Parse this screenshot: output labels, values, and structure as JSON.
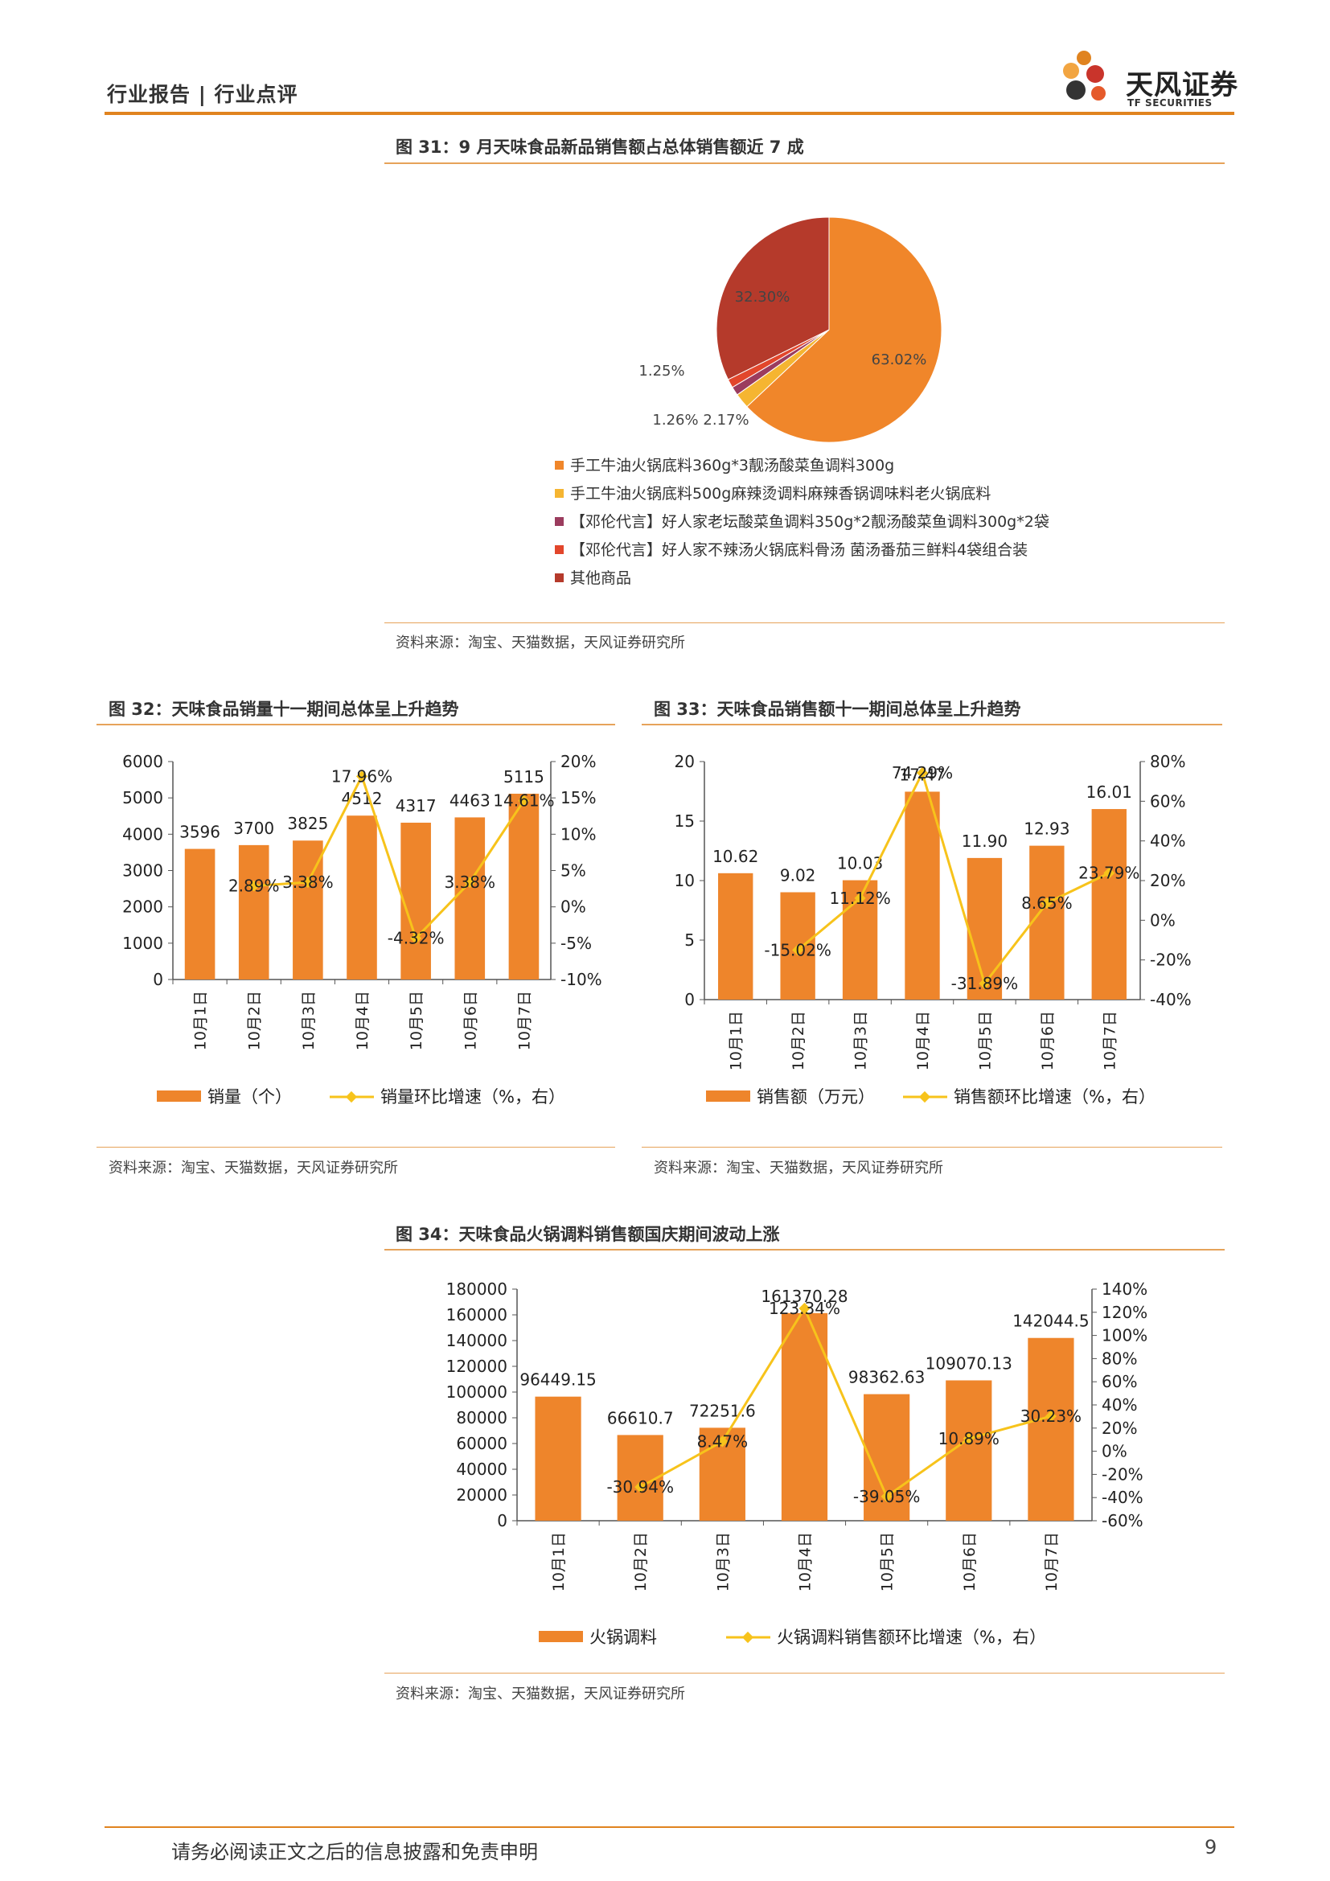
{
  "header": {
    "title": "行业报告 | 行业点评",
    "logo_cn": "天风证券",
    "logo_en": "TF SECURITIES"
  },
  "figures": {
    "fig31": {
      "title": "图 31：9 月天味食品新品销售额占总体销售额近 7 成",
      "source": "资料来源：淘宝、天猫数据，天风证券研究所"
    },
    "fig32": {
      "title": "图 32：天味食品销量十一期间总体呈上升趋势",
      "source": "资料来源：淘宝、天猫数据，天风证券研究所"
    },
    "fig33": {
      "title": "图 33：天味食品销售额十一期间总体呈上升趋势",
      "source": "资料来源：淘宝、天猫数据，天风证券研究所"
    },
    "fig34": {
      "title": "图 34：天味食品火锅调料销售额国庆期间波动上涨",
      "source": "资料来源：淘宝、天猫数据，天风证券研究所"
    }
  },
  "chart_data": [
    {
      "id": "fig31",
      "type": "pie",
      "labels": [
        "手工牛油火锅底料360g*3靓汤酸菜鱼调料300g",
        "手工牛油火锅底料500g麻辣烫调料麻辣香锅调味料老火锅底料",
        "【邓伦代言】好人家老坛酸菜鱼调料350g*2靓汤酸菜鱼调料300g*2袋",
        "【邓伦代言】好人家不辣汤火锅底料骨汤 菌汤番茄三鲜料4袋组合装",
        "其他商品"
      ],
      "values": [
        63.02,
        2.17,
        1.26,
        1.25,
        32.3
      ],
      "value_labels": [
        "63.02%",
        "2.17%",
        "1.26%",
        "1.25%",
        "32.30%"
      ],
      "colors": [
        "#F0862A",
        "#F5B531",
        "#9B3C5E",
        "#E2462B",
        "#B53A2B"
      ],
      "legend_position": "bottom"
    },
    {
      "id": "fig32",
      "type": "bar",
      "categories": [
        "10月1日",
        "10月2日",
        "10月3日",
        "10月4日",
        "10月5日",
        "10月6日",
        "10月7日"
      ],
      "series": [
        {
          "name": "销量（个）",
          "type": "bar",
          "values": [
            3596,
            3700,
            3825,
            4512,
            4317,
            4463,
            5115
          ],
          "labels": [
            "3596",
            "3700",
            "3825",
            "4512",
            "4317",
            "4463",
            "5115"
          ]
        },
        {
          "name": "销量环比增速（%，右）",
          "type": "line",
          "axis": "right",
          "values": [
            null,
            2.89,
            3.38,
            17.96,
            -4.32,
            3.38,
            14.61
          ],
          "labels": [
            "",
            "2.89%",
            "3.38%",
            "17.96%",
            "-4.32%",
            "3.38%",
            "14.61%"
          ]
        }
      ],
      "ylim": [
        0,
        6000
      ],
      "yticks": [
        "6000",
        "5000",
        "4000",
        "3000",
        "2000",
        "1000",
        "0"
      ],
      "y2lim": [
        -10,
        20
      ],
      "y2ticks": [
        "20%",
        "15%",
        "10%",
        "5%",
        "0%",
        "-5%",
        "-10%"
      ],
      "legend_position": "bottom"
    },
    {
      "id": "fig33",
      "type": "bar",
      "categories": [
        "10月1日",
        "10月2日",
        "10月3日",
        "10月4日",
        "10月5日",
        "10月6日",
        "10月7日"
      ],
      "series": [
        {
          "name": "销售额（万元）",
          "type": "bar",
          "values": [
            10.62,
            9.02,
            10.03,
            17.47,
            11.9,
            12.93,
            16.01
          ],
          "labels": [
            "10.62",
            "9.02",
            "10.03",
            "17.47",
            "11.90",
            "12.93",
            "16.01"
          ]
        },
        {
          "name": "销售额环比增速（%，右）",
          "type": "line",
          "axis": "right",
          "values": [
            null,
            -15.02,
            11.12,
            74.29,
            -31.89,
            8.65,
            23.79
          ],
          "labels": [
            "",
            "-15.02%",
            "11.12%",
            "74.29%",
            "-31.89%",
            "8.65%",
            "23.79%"
          ]
        }
      ],
      "ylim": [
        0,
        20
      ],
      "yticks": [
        "20",
        "15",
        "10",
        "5",
        "0"
      ],
      "y2lim": [
        -40,
        80
      ],
      "y2ticks": [
        "80%",
        "60%",
        "40%",
        "20%",
        "0%",
        "-20%",
        "-40%"
      ],
      "legend_position": "bottom"
    },
    {
      "id": "fig34",
      "type": "bar",
      "categories": [
        "10月1日",
        "10月2日",
        "10月3日",
        "10月4日",
        "10月5日",
        "10月6日",
        "10月7日"
      ],
      "series": [
        {
          "name": "火锅调料",
          "type": "bar",
          "values": [
            96449.15,
            66610.7,
            72251.6,
            161370.28,
            98362.63,
            109070.13,
            142044.5
          ],
          "labels": [
            "96449.15",
            "66610.7",
            "72251.6",
            "161370.28",
            "98362.63",
            "109070.13",
            "142044.5"
          ]
        },
        {
          "name": "火锅调料销售额环比增速（%，右）",
          "type": "line",
          "axis": "right",
          "values": [
            null,
            -30.94,
            8.47,
            123.34,
            -39.05,
            10.89,
            30.23
          ],
          "labels": [
            "",
            "-30.94%",
            "8.47%",
            "123.34%",
            "-39.05%",
            "10.89%",
            "30.23%"
          ]
        }
      ],
      "ylim": [
        0,
        180000
      ],
      "yticks": [
        "180000",
        "160000",
        "140000",
        "120000",
        "100000",
        "80000",
        "60000",
        "40000",
        "20000",
        "0"
      ],
      "y2lim": [
        -60,
        140
      ],
      "y2ticks": [
        "140%",
        "120%",
        "100%",
        "80%",
        "60%",
        "40%",
        "20%",
        "0%",
        "-20%",
        "-40%",
        "-60%"
      ],
      "legend_position": "bottom"
    }
  ],
  "colors": {
    "bar": "#EE852B",
    "line": "#F7C31B",
    "accent": "#E0831F",
    "rule": "#E6A35A"
  },
  "footer": {
    "disclaimer": "请务必阅读正文之后的信息披露和免责申明",
    "page": "9"
  }
}
